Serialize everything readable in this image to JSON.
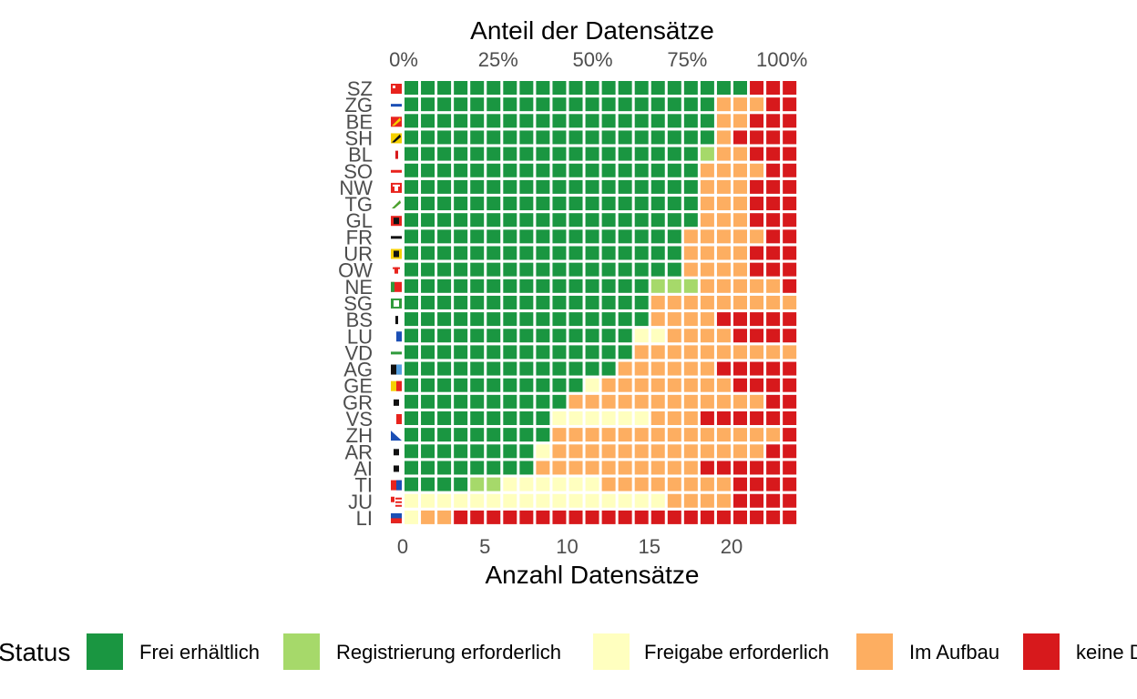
{
  "chart_data": {
    "type": "heatmap",
    "title": "Anteil der Datensätze",
    "xlabel": "Anzahl Datensätze",
    "ylabel": "",
    "x_ticks": [
      0,
      5,
      10,
      15,
      20
    ],
    "top_ticks": [
      "0%",
      "25%",
      "50%",
      "75%",
      "100%"
    ],
    "xlim": [
      0,
      23
    ],
    "grid": false,
    "legend_position": "bottom",
    "legend_title": "Status",
    "categories": [
      {
        "key": "F",
        "name": "Frei erhältlich",
        "color": "#1a9641"
      },
      {
        "key": "R",
        "name": "Registrierung erforderlich",
        "color": "#a6d96a"
      },
      {
        "key": "G",
        "name": "Freigabe erforderlich",
        "color": "#ffffbf"
      },
      {
        "key": "A",
        "name": "Im Aufbau",
        "color": "#fdae61"
      },
      {
        "key": "K",
        "name": "keine Daten",
        "color": "#d7191c"
      }
    ],
    "rows": [
      {
        "state": "SZ",
        "cells": "FFFFFFFFFFFFFFFFFFFFFKKK"
      },
      {
        "state": "ZG",
        "cells": "FFFFFFFFFFFFFFFFFFFAAAKK"
      },
      {
        "state": "BE",
        "cells": "FFFFFFFFFFFFFFFFFFFAAKKK"
      },
      {
        "state": "SH",
        "cells": "FFFFFFFFFFFFFFFFFFFAKKKK"
      },
      {
        "state": "BL",
        "cells": "FFFFFFFFFFFFFFFFFFRAAKKK"
      },
      {
        "state": "SO",
        "cells": "FFFFFFFFFFFFFFFFFFAAAAKK"
      },
      {
        "state": "NW",
        "cells": "FFFFFFFFFFFFFFFFFFAAAKKK"
      },
      {
        "state": "TG",
        "cells": "FFFFFFFFFFFFFFFFFFAAAKKK"
      },
      {
        "state": "GL",
        "cells": "FFFFFFFFFFFFFFFFFFAAAKKK"
      },
      {
        "state": "FR",
        "cells": "FFFFFFFFFFFFFFFFFAAAAAKK"
      },
      {
        "state": "UR",
        "cells": "FFFFFFFFFFFFFFFFFAAAAKKK"
      },
      {
        "state": "OW",
        "cells": "FFFFFFFFFFFFFFFFFAAAAKKK"
      },
      {
        "state": "NE",
        "cells": "FFFFFFFFFFFFFFFRRRAAAAAK"
      },
      {
        "state": "SG",
        "cells": "FFFFFFFFFFFFFFFAAAAAAAAA"
      },
      {
        "state": "BS",
        "cells": "FFFFFFFFFFFFFFFAAAAKKKKK"
      },
      {
        "state": "LU",
        "cells": "FFFFFFFFFFFFFFGGAAAAKKKK"
      },
      {
        "state": "VD",
        "cells": "FFFFFFFFFFFFFFAAAAAAAAAA"
      },
      {
        "state": "AG",
        "cells": "FFFFFFFFFFFFFAAAAAAKKKKK"
      },
      {
        "state": "GE",
        "cells": "FFFFFFFFFFFGAAAAAAAAKKKK"
      },
      {
        "state": "GR",
        "cells": "FFFFFFFFFFAAAAAAAAAAAAKK"
      },
      {
        "state": "VS",
        "cells": "FFFFFFFFFGGGGGGAAAKKKKKK"
      },
      {
        "state": "ZH",
        "cells": "FFFFFFFFFAAAAAAAAAAAAAAK"
      },
      {
        "state": "AR",
        "cells": "FFFFFFFFGAAAAAAAAAAAAAKK"
      },
      {
        "state": "AI",
        "cells": "FFFFFFFFAAAAAAAAAAKKKKKK"
      },
      {
        "state": "TI",
        "cells": "FFFFRRGGGGGGAAAAAAAAKKKK"
      },
      {
        "state": "JU",
        "cells": "GGGGGGGGGGGGGGGGAAAAKKKK"
      },
      {
        "state": "LI",
        "cells": "GAAKKKKKKKKKKKKKKKKKKKKK"
      }
    ],
    "flags": {
      "SZ": {
        "bg": "#e8231d",
        "fg": "#ffffff",
        "pattern": "corner"
      },
      "ZG": {
        "bg": "#ffffff",
        "fg": "#1b4fb5",
        "pattern": "hband"
      },
      "BE": {
        "bg": "#e8231d",
        "fg": "#f5d000",
        "pattern": "diag"
      },
      "SH": {
        "bg": "#f5d000",
        "fg": "#111111",
        "pattern": "diag"
      },
      "BL": {
        "bg": "#ffffff",
        "fg": "#d7191c",
        "pattern": "staff"
      },
      "SO": {
        "bg": "#ffffff",
        "fg": "#e8231d",
        "pattern": "hband"
      },
      "NW": {
        "bg": "#e8231d",
        "fg": "#ffffff",
        "pattern": "key"
      },
      "TG": {
        "bg": "#ffffff",
        "fg": "#4aa02c",
        "pattern": "diag"
      },
      "GL": {
        "bg": "#e8231d",
        "fg": "#111111",
        "pattern": "figure"
      },
      "FR": {
        "bg": "#ffffff",
        "fg": "#111111",
        "pattern": "hband"
      },
      "UR": {
        "bg": "#f5d000",
        "fg": "#111111",
        "pattern": "figure"
      },
      "OW": {
        "bg": "#ffffff",
        "fg": "#e8231d",
        "pattern": "key"
      },
      "NE": {
        "bg": "#e8231d",
        "fg": "#2f9a3b",
        "pattern": "tricolor"
      },
      "SG": {
        "bg": "#2f9a3b",
        "fg": "#ffffff",
        "pattern": "figure"
      },
      "BS": {
        "bg": "#ffffff",
        "fg": "#111111",
        "pattern": "staff"
      },
      "LU": {
        "bg": "#ffffff",
        "fg": "#1b4fb5",
        "pattern": "vhalf"
      },
      "VD": {
        "bg": "#ffffff",
        "fg": "#2f9a3b",
        "pattern": "hband"
      },
      "AG": {
        "bg": "#111111",
        "fg": "#56a0e0",
        "pattern": "vhalf"
      },
      "GE": {
        "bg": "#f5d000",
        "fg": "#e8231d",
        "pattern": "vhalf"
      },
      "GR": {
        "bg": "#ffffff",
        "fg": "#111111",
        "pattern": "figure"
      },
      "VS": {
        "bg": "#ffffff",
        "fg": "#e8231d",
        "pattern": "vhalf"
      },
      "ZH": {
        "bg": "#ffffff",
        "fg": "#1b4fb5",
        "pattern": "diagtri"
      },
      "AR": {
        "bg": "#ffffff",
        "fg": "#111111",
        "pattern": "figure"
      },
      "AI": {
        "bg": "#ffffff",
        "fg": "#111111",
        "pattern": "figure"
      },
      "TI": {
        "bg": "#e8231d",
        "fg": "#1b4fb5",
        "pattern": "vhalf"
      },
      "JU": {
        "bg": "#ffffff",
        "fg": "#e8231d",
        "pattern": "stripes"
      },
      "LI": {
        "bg": "#1b4fb5",
        "fg": "#e8231d",
        "pattern": "hhalf"
      }
    }
  }
}
